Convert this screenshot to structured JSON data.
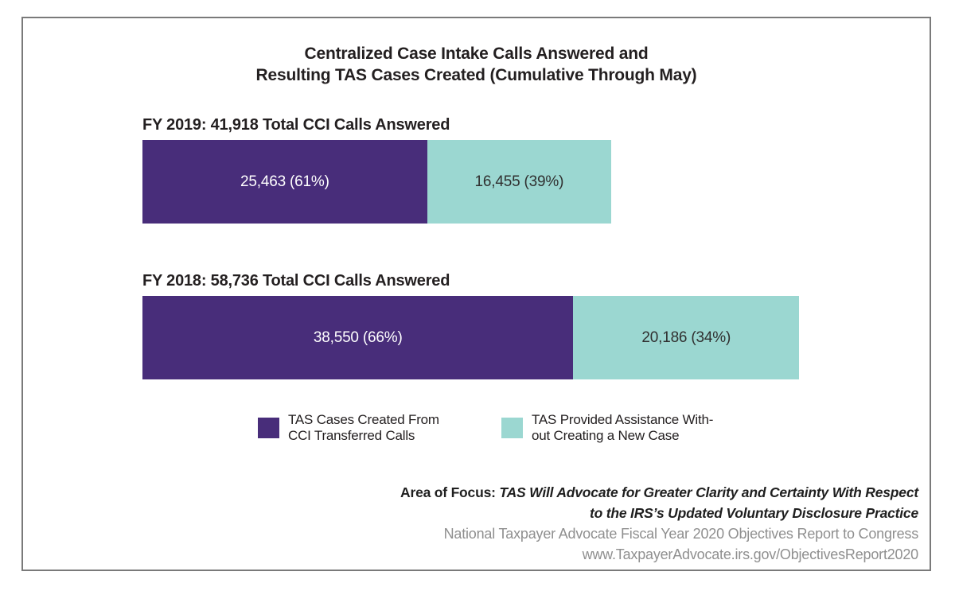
{
  "title": {
    "line1": "Centralized Case Intake Calls Answered and",
    "line2": "Resulting TAS Cases Created (Cumulative Through May)"
  },
  "chart_data": {
    "type": "bar",
    "orientation": "horizontal",
    "stacked": true,
    "title": "Centralized Case Intake Calls Answered and Resulting TAS Cases Created (Cumulative Through May)",
    "categories": [
      "FY 2019",
      "FY 2018"
    ],
    "totals": [
      41918,
      58736
    ],
    "series": [
      {
        "name": "TAS Cases Created From CCI Transferred Calls",
        "color": "#482d7a",
        "values": [
          25463,
          38550
        ],
        "percents": [
          61,
          66
        ]
      },
      {
        "name": "TAS Provided Assistance Without Creating a New Case",
        "color": "#9bd7d1",
        "values": [
          16455,
          20186
        ],
        "percents": [
          39,
          34
        ]
      }
    ],
    "bars": [
      {
        "header": "FY 2019: 41,918 Total CCI Calls Answered",
        "total": 41918,
        "segments": [
          {
            "value": 25463,
            "label": "25,463 (61%)"
          },
          {
            "value": 16455,
            "label": "16,455 (39%)"
          }
        ]
      },
      {
        "header": "FY 2018: 58,736 Total CCI Calls Answered",
        "total": 58736,
        "segments": [
          {
            "value": 38550,
            "label": "38,550 (66%)"
          },
          {
            "value": 20186,
            "label": "20,186 (34%)"
          }
        ]
      }
    ],
    "legend_position": "bottom",
    "grid": false
  },
  "legend": {
    "items": [
      {
        "color": "#482d7a",
        "line1": "TAS Cases Created From",
        "line2": "CCI Transferred Calls"
      },
      {
        "color": "#9bd7d1",
        "line1": "TAS Provided Assistance With-",
        "line2": "out Creating a New Case"
      }
    ]
  },
  "footer": {
    "area_of_focus_prefix": "Area of Focus: ",
    "area_of_focus_line1": "TAS Will Advocate for Greater Clarity and Certainty With Respect",
    "area_of_focus_line2": "to the IRS’s Updated Voluntary Disclosure Practice",
    "source_line1": "National Taxpayer Advocate Fiscal Year 2020 Objectives Report to Congress",
    "source_line2": "www.TaxpayerAdvocate.irs.gov/ObjectivesReport2020"
  },
  "colors": {
    "purple": "#482d7a",
    "teal": "#9bd7d1",
    "text_dark": "#231f20",
    "text_gray": "#8f8f8f",
    "frame_border": "#7a7a7a"
  }
}
